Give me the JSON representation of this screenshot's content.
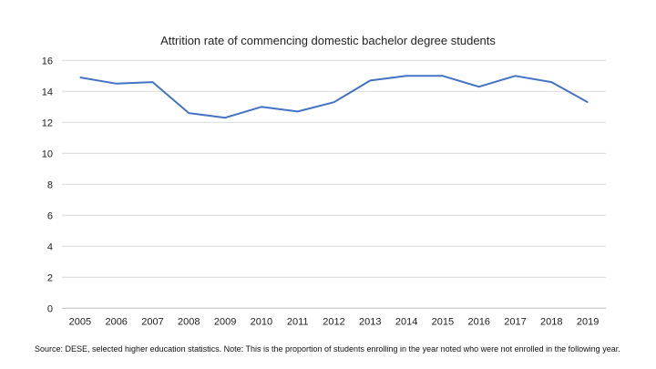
{
  "chart_data": {
    "type": "line",
    "title": "Attrition rate of commencing domestic bachelor degree students",
    "xlabel": "",
    "ylabel": "",
    "categories": [
      "2005",
      "2006",
      "2007",
      "2008",
      "2009",
      "2010",
      "2011",
      "2012",
      "2013",
      "2014",
      "2015",
      "2016",
      "2017",
      "2018",
      "2019"
    ],
    "series": [
      {
        "name": "Attrition rate",
        "values": [
          14.9,
          14.5,
          14.6,
          12.6,
          12.3,
          13.0,
          12.7,
          13.3,
          14.7,
          15.0,
          15.0,
          14.3,
          15.0,
          14.6,
          13.3
        ],
        "color": "#4472c4"
      }
    ],
    "ylim": [
      0,
      16
    ],
    "yticks": [
      0,
      2,
      4,
      6,
      8,
      10,
      12,
      14,
      16
    ],
    "grid": true,
    "legend": "none"
  },
  "note": "Source: DESE, selected higher education statistics. Note: This is the proportion of students enrolling in the year noted who were not enrolled in the following year."
}
